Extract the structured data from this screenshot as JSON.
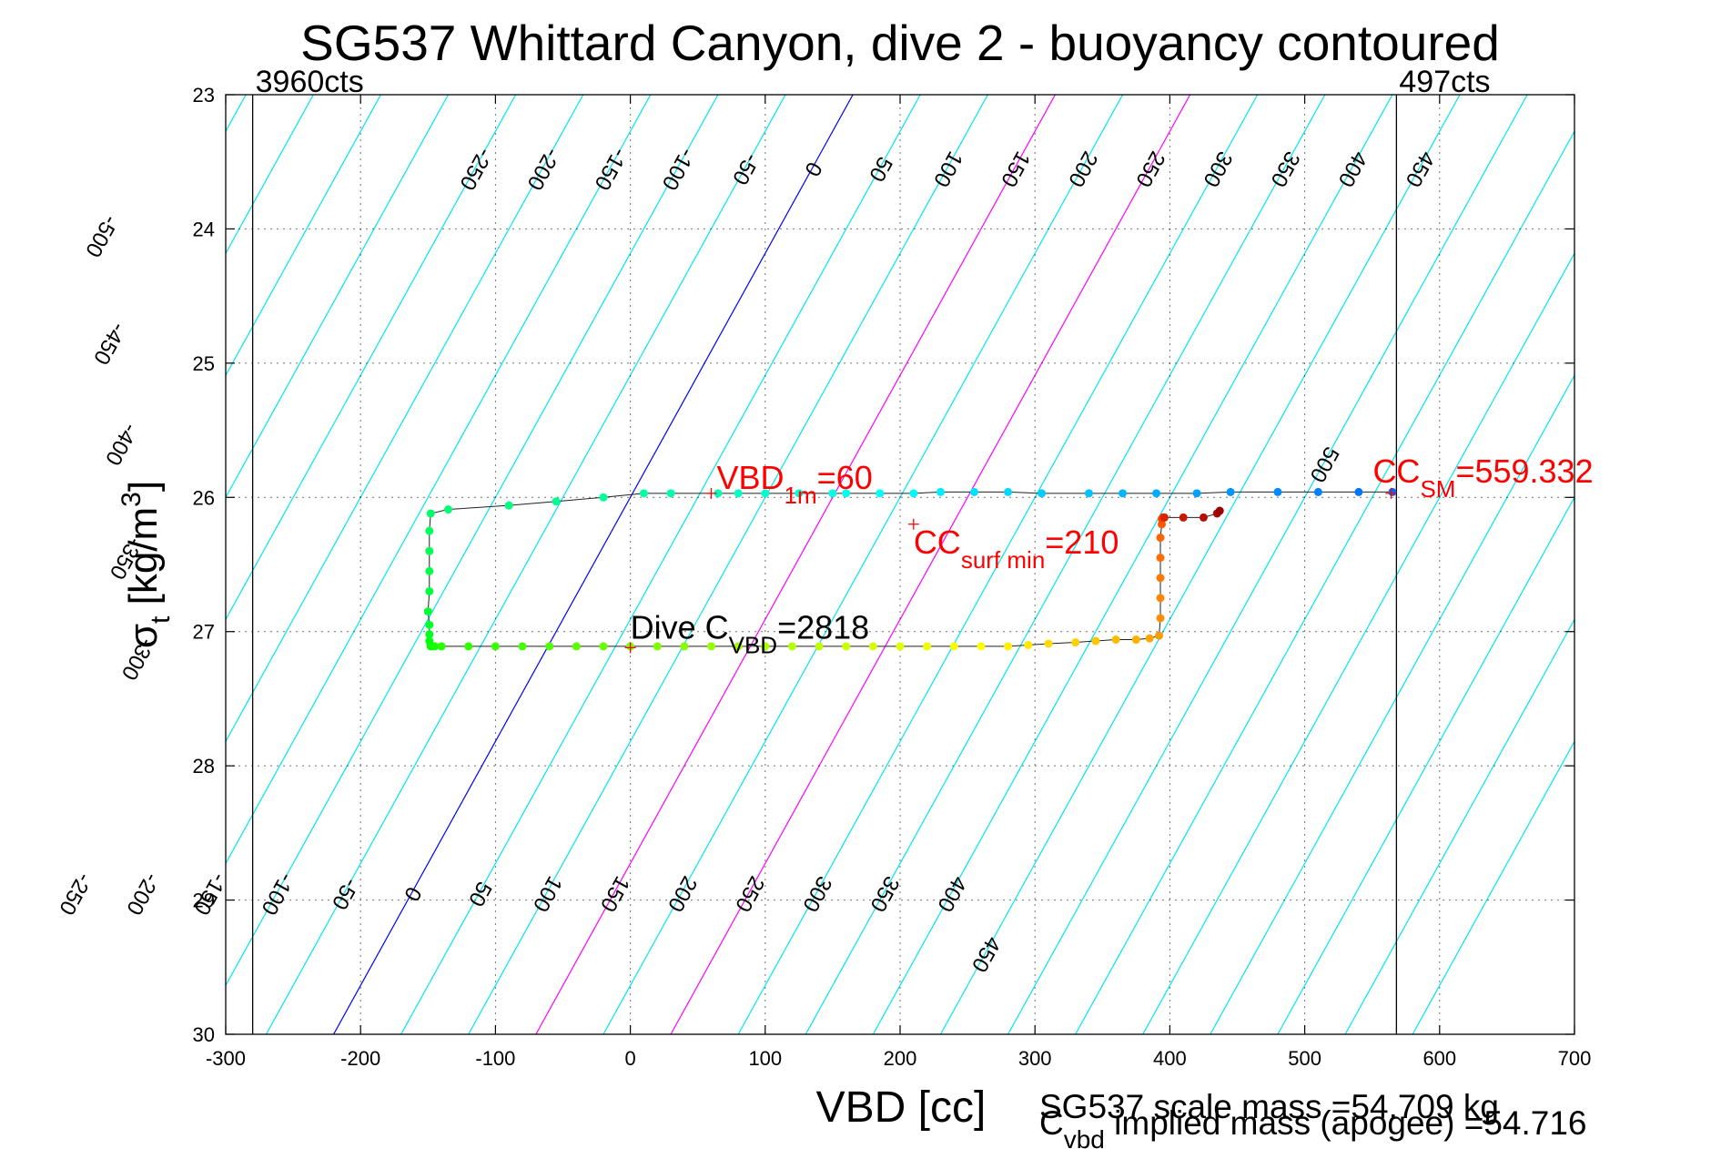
{
  "chart_data": {
    "type": "scatter",
    "title": "SG537 Whittard Canyon, dive 2 - buoyancy contoured",
    "xlabel": "VBD [cc]",
    "ylabel": "σt [kg/m3]",
    "xlim": [
      -300,
      700
    ],
    "ylim": [
      23,
      30
    ],
    "y_reversed": true,
    "grid": true,
    "x_ticks": [
      -300,
      -200,
      -100,
      0,
      100,
      200,
      300,
      400,
      500,
      600,
      700
    ],
    "y_ticks": [
      23,
      24,
      25,
      26,
      27,
      28,
      29,
      30
    ],
    "vertical_markers": [
      {
        "x": -280,
        "label": "3960cts"
      },
      {
        "x": 568,
        "label": "497cts"
      }
    ],
    "buoyancy_contours": {
      "slope_cc_per_sigma": -55,
      "levels": [
        -500,
        -450,
        -400,
        -350,
        -300,
        -250,
        -200,
        -150,
        -100,
        -50,
        0,
        50,
        100,
        150,
        200,
        250,
        300,
        350,
        400,
        450,
        500
      ],
      "highlight_levels": [
        0,
        150,
        250
      ],
      "colors": {
        "default": "#00e5ee",
        "zero": "#0000ff",
        "highlight": "#ff00ff"
      },
      "top_labels": [
        -250,
        -200,
        -150,
        -100,
        -50,
        0,
        50,
        100,
        150,
        200,
        250,
        300,
        350,
        400,
        450
      ],
      "side_labels": [
        -500,
        -450,
        -400,
        -350,
        -300,
        500
      ],
      "bottom_labels": [
        -250,
        -200,
        -150,
        -100,
        -50,
        0,
        50,
        100,
        150,
        200,
        250,
        300,
        350,
        400,
        450
      ]
    },
    "trace": {
      "x": [
        565,
        540,
        510,
        480,
        445,
        420,
        390,
        365,
        340,
        305,
        280,
        255,
        230,
        210,
        185,
        160,
        150,
        125,
        100,
        80,
        65,
        30,
        10,
        -20,
        -55,
        -90,
        -135,
        -148,
        -149,
        -149,
        -149,
        -149,
        -150,
        -149,
        -149,
        -149,
        -148,
        -148,
        -147,
        -145,
        -140,
        -120,
        -100,
        -80,
        -60,
        -40,
        -20,
        0,
        20,
        40,
        60,
        80,
        100,
        120,
        140,
        160,
        180,
        200,
        220,
        240,
        260,
        280,
        295,
        310,
        330,
        345,
        360,
        375,
        385,
        392,
        393,
        393,
        393,
        393,
        393,
        394,
        394,
        395,
        395,
        396,
        410,
        425,
        435,
        437
      ],
      "y": [
        25.96,
        25.96,
        25.96,
        25.96,
        25.96,
        25.97,
        25.97,
        25.97,
        25.97,
        25.97,
        25.96,
        25.96,
        25.96,
        25.97,
        25.97,
        25.97,
        25.97,
        25.97,
        25.97,
        25.97,
        25.97,
        25.97,
        25.97,
        26.0,
        26.03,
        26.06,
        26.09,
        26.12,
        26.25,
        26.4,
        26.55,
        26.7,
        26.85,
        26.95,
        27.02,
        27.07,
        27.1,
        27.11,
        27.11,
        27.11,
        27.11,
        27.11,
        27.11,
        27.11,
        27.11,
        27.11,
        27.11,
        27.11,
        27.11,
        27.11,
        27.11,
        27.11,
        27.11,
        27.11,
        27.11,
        27.11,
        27.11,
        27.11,
        27.11,
        27.11,
        27.11,
        27.11,
        27.1,
        27.09,
        27.08,
        27.07,
        27.06,
        27.06,
        27.05,
        27.03,
        26.9,
        26.75,
        26.6,
        26.45,
        26.3,
        26.2,
        26.16,
        26.15,
        26.15,
        26.15,
        26.15,
        26.15,
        26.12,
        26.1
      ]
    },
    "markers": [
      {
        "x": 60,
        "y": 25.97,
        "label": "VBD",
        "sub": "1m",
        "value": "=60"
      },
      {
        "x": 564,
        "y": 25.97,
        "label": "CC",
        "sub": "SM",
        "value": "=559.332"
      },
      {
        "x": 210,
        "y": 26.2,
        "label": "CC",
        "sub": "surf min",
        "value": "=210"
      },
      {
        "x": 0,
        "y": 27.12,
        "label": "Dive C",
        "sub": "VBD",
        "value": "=2818"
      }
    ],
    "footnotes": {
      "scale_mass": "SG537 scale mass =54.709 kg",
      "implied_main": "C",
      "implied_sub": "vbd",
      "implied_rest": " implied mass (apogee) =54.716"
    }
  }
}
